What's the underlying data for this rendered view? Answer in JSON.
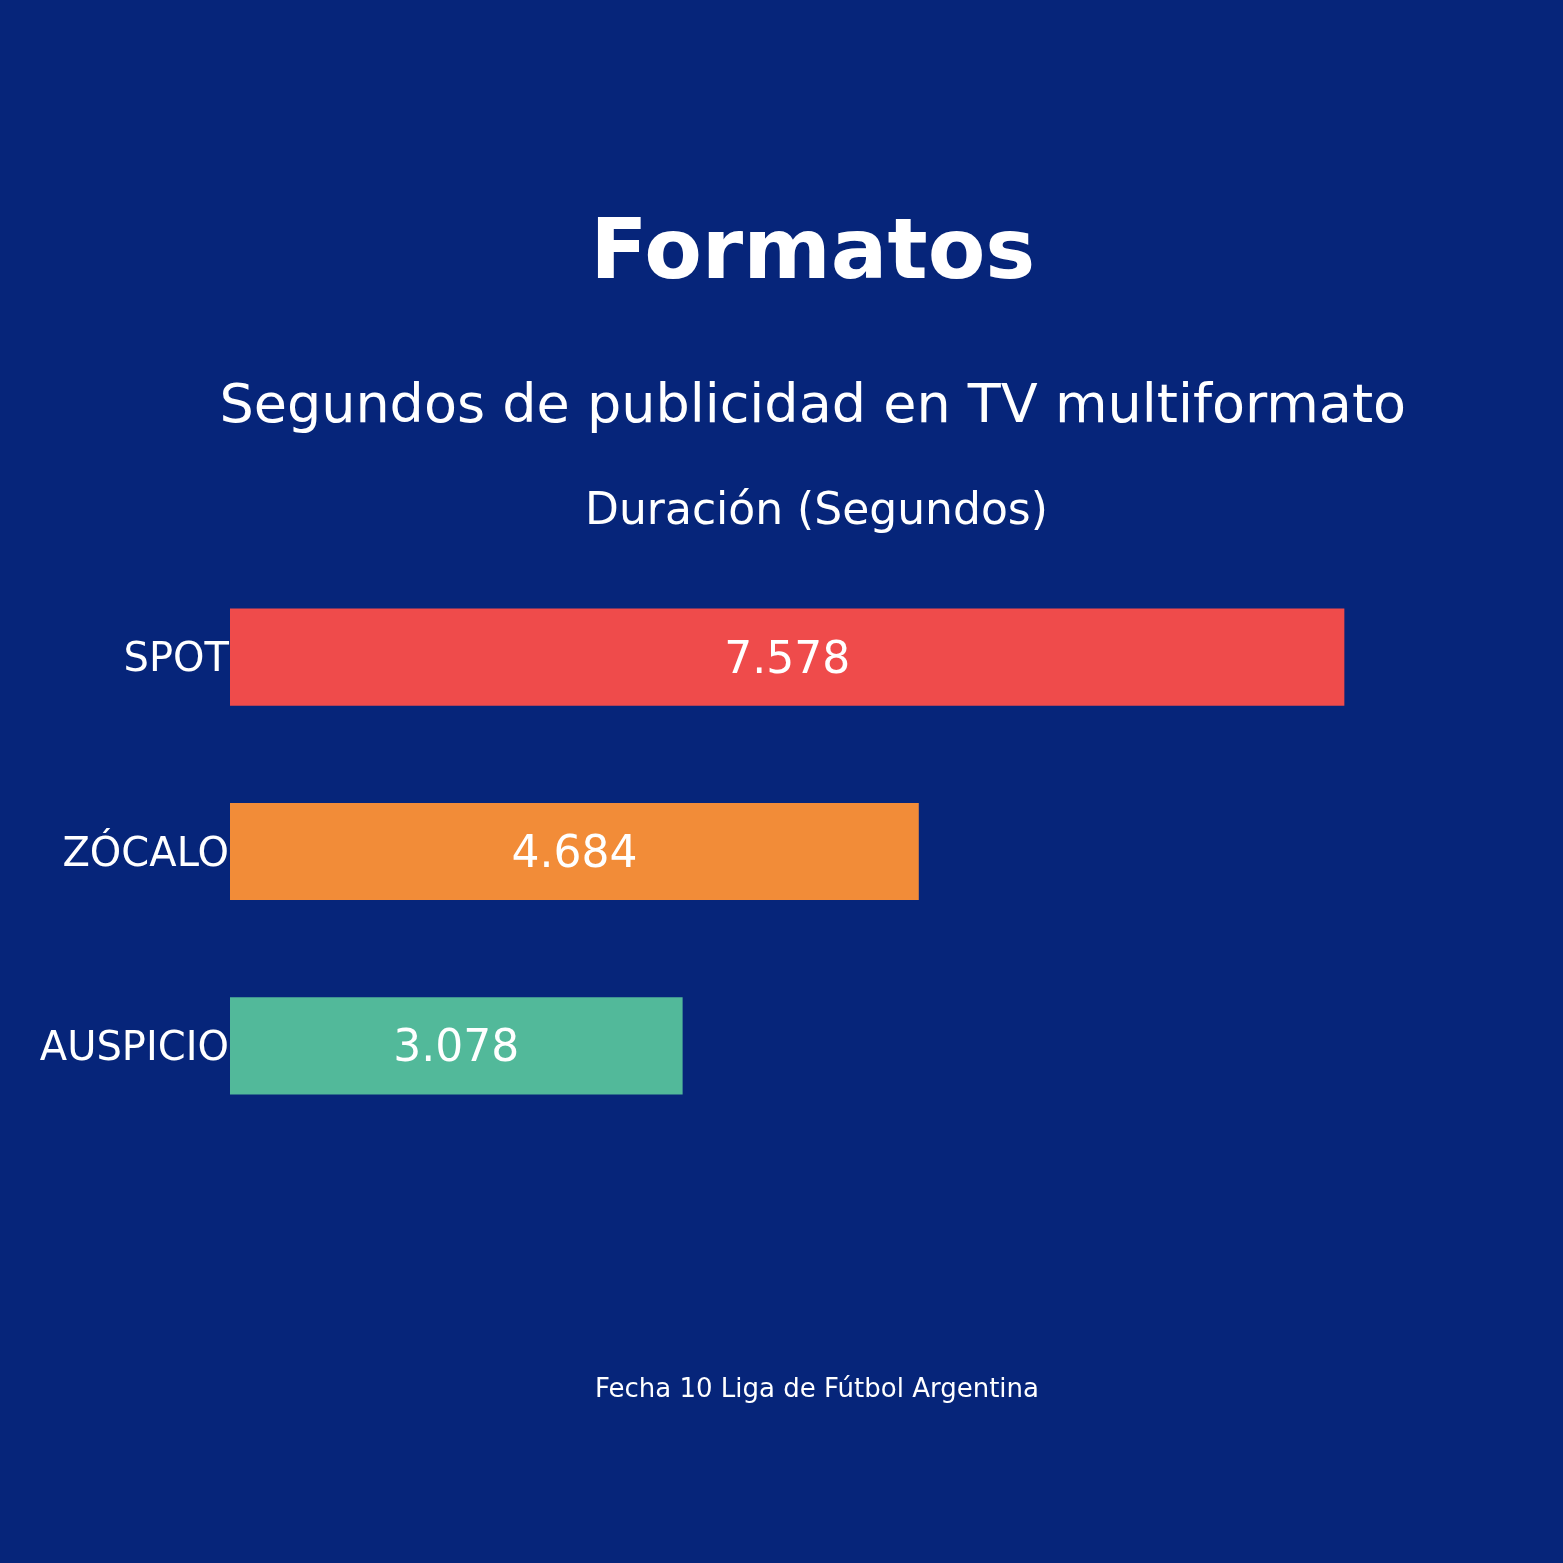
{
  "chart_data": {
    "type": "bar",
    "orientation": "horizontal",
    "title": "Formatos",
    "subtitle": "Segundos de publicidad en TV multiformato",
    "xlabel": "Duración (Segundos)",
    "categories": [
      "SPOT",
      "ZÓCALO",
      "AUSPICIO"
    ],
    "values": [
      7578,
      4684,
      3078
    ],
    "colors": [
      "#ef4b4b",
      "#f28c38",
      "#52b99a"
    ],
    "value_labels": [
      "7.578",
      "4.684",
      "3.078"
    ],
    "annotations": [
      "Fecha 10 Liga de Fútbol Argentina"
    ]
  }
}
